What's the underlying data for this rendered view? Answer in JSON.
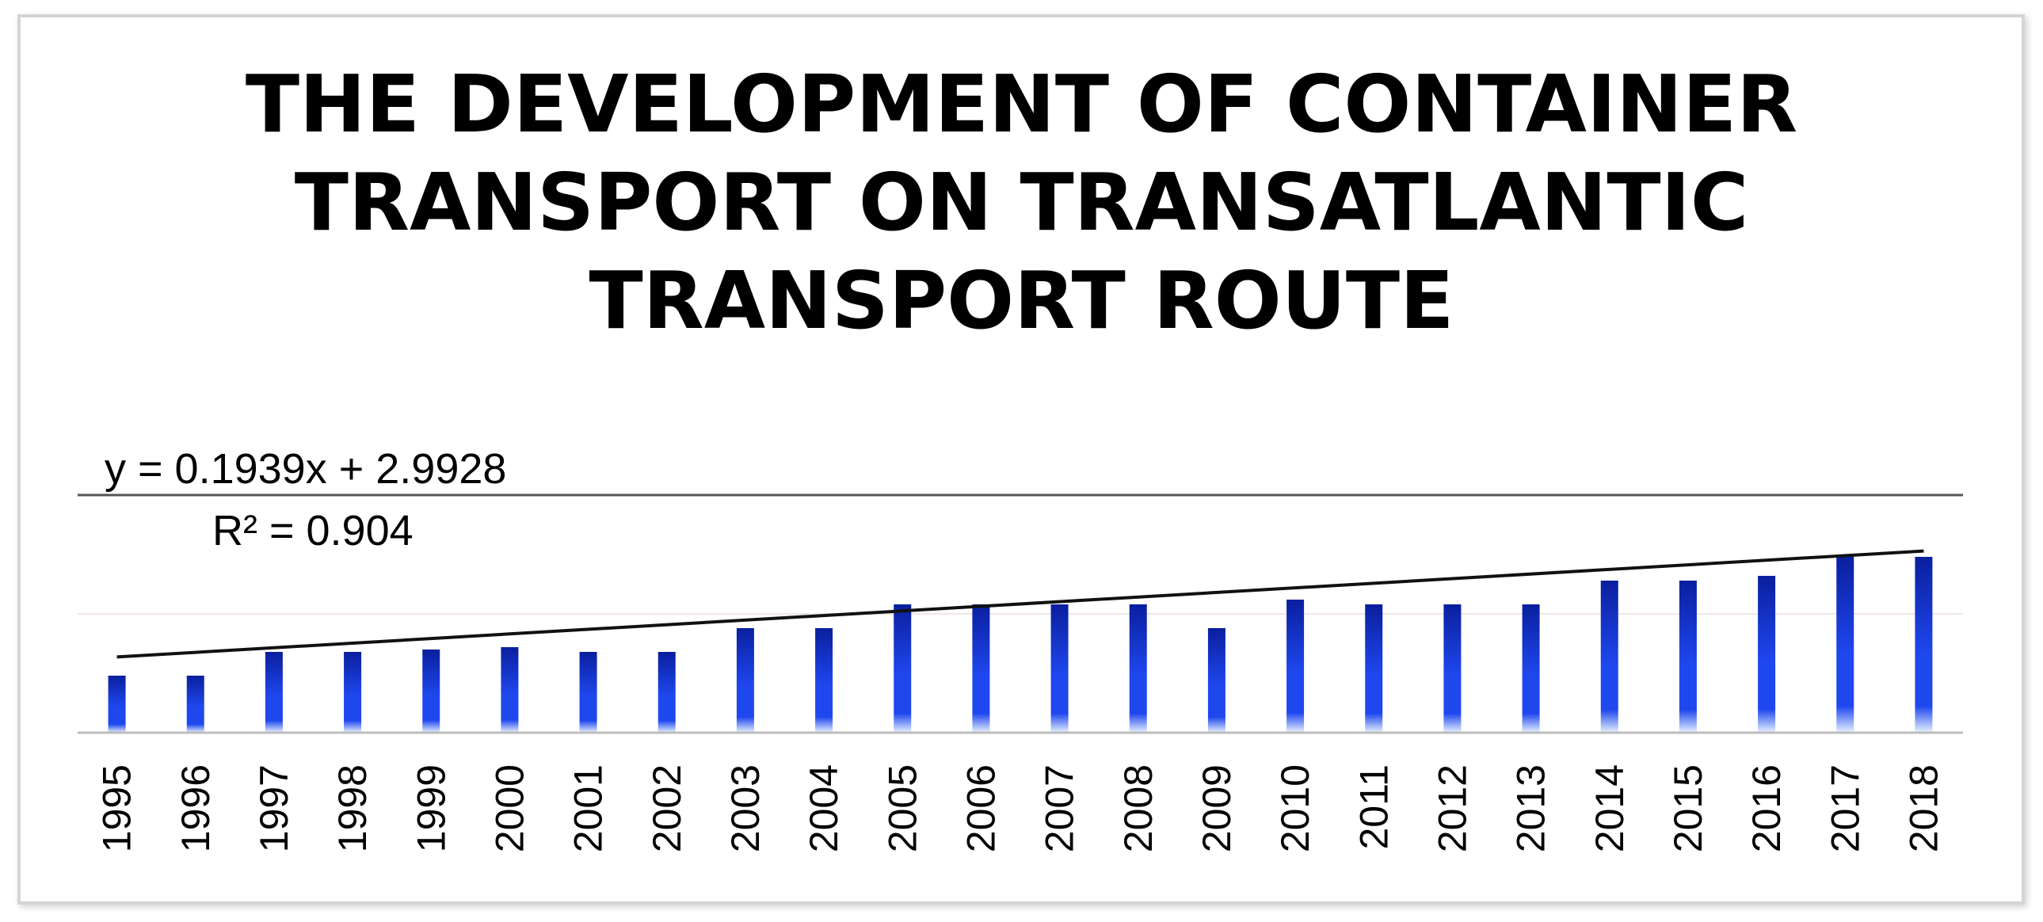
{
  "chart_data": {
    "type": "bar",
    "title_lines": [
      "THE DEVELOPMENT OF CONTAINER",
      "TRANSPORT ON TRANSATLANTIC",
      "TRANSPORT ROUTE"
    ],
    "categories": [
      "1995",
      "1996",
      "1997",
      "1998",
      "1999",
      "2000",
      "2001",
      "2002",
      "2003",
      "2004",
      "2005",
      "2006",
      "2007",
      "2008",
      "2009",
      "2010",
      "2011",
      "2012",
      "2013",
      "2014",
      "2015",
      "2016",
      "2017",
      "2018"
    ],
    "values": [
      2.4,
      2.4,
      3.4,
      3.4,
      3.5,
      3.6,
      3.4,
      3.4,
      4.4,
      4.4,
      5.4,
      5.4,
      5.4,
      5.4,
      4.4,
      5.6,
      5.4,
      5.4,
      5.4,
      6.4,
      6.4,
      6.6,
      7.4,
      7.4
    ],
    "trendline": {
      "type": "linear",
      "slope": 0.1939,
      "intercept": 2.9928
    },
    "annotations": {
      "equation": "y = 0.1939x + 2.9928",
      "r_squared": "R² = 0.904"
    },
    "ylim": [
      0,
      10
    ],
    "xlabel": "",
    "ylabel": "",
    "grid": true,
    "colors": {
      "bar_top": "#0a1f9e",
      "bar_mid": "#1f47ee",
      "bar_bottom": "#e8f3ff",
      "trendline": "#111111",
      "axis": "#bdbdbd",
      "grid": "#f0e6e6"
    }
  }
}
